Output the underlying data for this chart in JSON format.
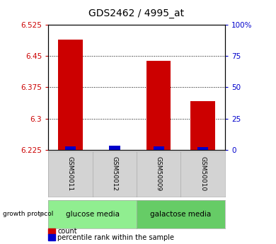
{
  "title": "GDS2462 / 4995_at",
  "samples": [
    "GSM50011",
    "GSM50012",
    "GSM50009",
    "GSM50010"
  ],
  "red_values": [
    6.489,
    6.226,
    6.438,
    6.342
  ],
  "blue_values": [
    0.008,
    0.01,
    0.008,
    0.007
  ],
  "y_min": 6.225,
  "y_max": 6.525,
  "y_ticks": [
    6.225,
    6.3,
    6.375,
    6.45,
    6.525
  ],
  "right_y_ticks": [
    0,
    25,
    50,
    75,
    100
  ],
  "right_y_labels": [
    "0",
    "25",
    "50",
    "75",
    "100%"
  ],
  "bar_width": 0.55,
  "red_color": "#cc0000",
  "blue_color": "#0000cc",
  "groups": [
    {
      "label": "glucose media",
      "color": "#90EE90"
    },
    {
      "label": "galactose media",
      "color": "#66CC66"
    }
  ],
  "group_label": "growth protocol",
  "legend_red": "count",
  "legend_blue": "percentile rank within the sample",
  "background_color": "#ffffff",
  "plot_bg": "#ffffff",
  "title_fontsize": 10,
  "axis_label_color_red": "#cc0000",
  "axis_label_color_blue": "#0000cc",
  "sample_box_color": "#d3d3d3"
}
